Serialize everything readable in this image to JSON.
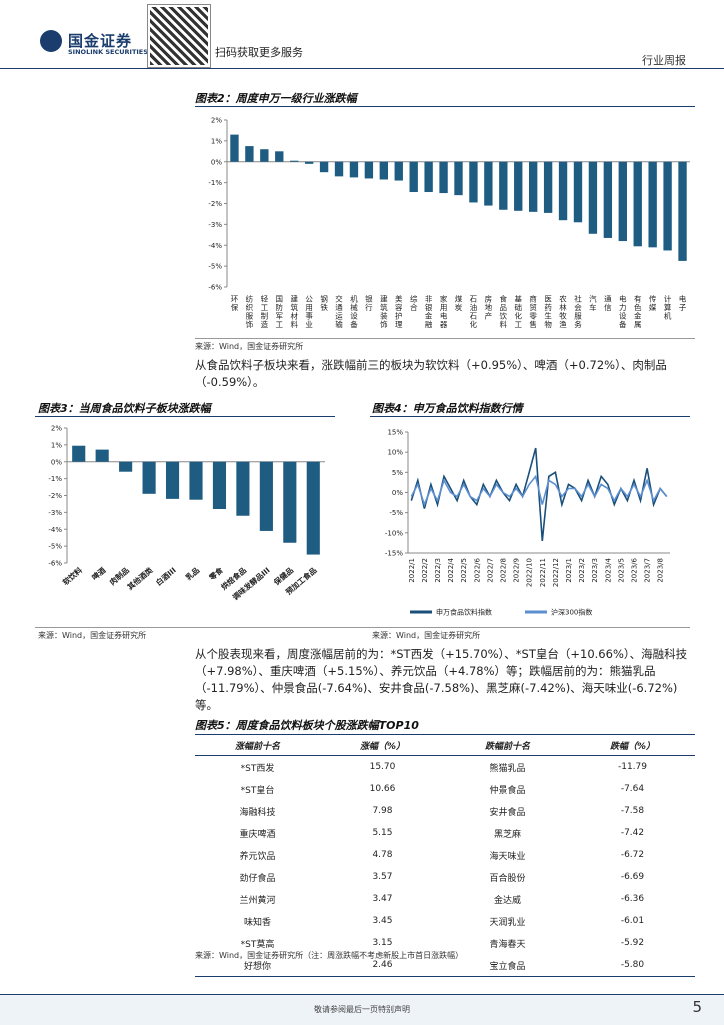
{
  "header": {
    "logo_cn": "国金证券",
    "logo_en": "SINOLINK SECURITIES",
    "qr_text": "扫码获取更多服务",
    "report_type": "行业周报"
  },
  "paragraphs": [
    "从食品饮料子板块来看，涨跌幅前三的板块为软饮料（+0.95%）、啤酒（+0.72%）、肉制品（-0.59%）。",
    "从个股表现来看，周度涨幅居前的为：*ST西发（+15.70%）、*ST皇台（+10.66%）、海融科技（+7.98%）、重庆啤酒（+5.15%）、养元饮品（+4.78%）等；跌幅居前的为：熊猫乳品（-11.79%）、仲景食品(-7.64%)、安井食品(-7.58%)、黑芝麻(-7.42%)、海天味业(-6.72%)等。"
  ],
  "sources": [
    "来源：Wind，国金证券研究所",
    "来源：Wind，国金证券研究所",
    "来源：Wind，国金证券研究所",
    "来源：Wind，国金证券研究所（注：周涨跌幅不考虑新股上市首日涨跌幅）"
  ],
  "chart_data": [
    {
      "type": "bar",
      "title": "图表2：周度申万一级行业涨跌幅",
      "color": "#1f5c82",
      "categories": [
        "环保",
        "纺织服饰",
        "轻工制造",
        "国防军工",
        "建筑材料",
        "公用事业",
        "钢铁",
        "交通运输",
        "机械设备",
        "银行",
        "建筑装饰",
        "美容护理",
        "综合",
        "非银金融",
        "家用电器",
        "煤炭",
        "石油石化",
        "房地产",
        "食品饮料",
        "基础化工",
        "商贸零售",
        "医药生物",
        "农林牧渔",
        "社会服务",
        "汽车",
        "通信",
        "电力设备",
        "有色金属",
        "传媒",
        "计算机",
        "电子"
      ],
      "values": [
        1.3,
        0.75,
        0.6,
        0.5,
        0.05,
        -0.1,
        -0.5,
        -0.7,
        -0.75,
        -0.8,
        -0.85,
        -0.9,
        -1.45,
        -1.45,
        -1.5,
        -1.6,
        -1.95,
        -2.1,
        -2.3,
        -2.35,
        -2.4,
        -2.45,
        -2.8,
        -2.9,
        -3.45,
        -3.65,
        -3.8,
        -4.05,
        -4.1,
        -4.25,
        -4.75
      ],
      "ylim": [
        -6,
        2
      ],
      "yticks": [
        {
          "value": 2,
          "label": "2%"
        },
        {
          "value": 1,
          "label": "1%"
        },
        {
          "value": 0,
          "label": "0%"
        },
        {
          "value": -1,
          "label": "-1%"
        },
        {
          "value": -2,
          "label": "-2%"
        },
        {
          "value": -3,
          "label": "-3%"
        },
        {
          "value": -4,
          "label": "-4%"
        },
        {
          "value": -5,
          "label": "-5%"
        },
        {
          "value": -6,
          "label": "-6%"
        }
      ]
    },
    {
      "type": "bar",
      "title": "图表3：当周食品饮料子板块涨跌幅",
      "color": "#1f5c82",
      "categories": [
        "软饮料",
        "啤酒",
        "肉制品",
        "其他酒类",
        "白酒III",
        "乳品",
        "零食",
        "烘焙食品",
        "调味发酵品III",
        "保健品",
        "预加工食品"
      ],
      "values": [
        0.95,
        0.72,
        -0.59,
        -1.9,
        -2.2,
        -2.25,
        -2.8,
        -3.2,
        -4.1,
        -4.8,
        -5.5
      ],
      "ylim": [
        -6,
        2
      ],
      "yticks": [
        {
          "value": 2,
          "label": "2%"
        },
        {
          "value": 1,
          "label": "1%"
        },
        {
          "value": 0,
          "label": "0%"
        },
        {
          "value": -1,
          "label": "-1%"
        },
        {
          "value": -2,
          "label": "-2%"
        },
        {
          "value": -3,
          "label": "-3%"
        },
        {
          "value": -4,
          "label": "-4%"
        },
        {
          "value": -5,
          "label": "-5%"
        },
        {
          "value": -6,
          "label": "-6%"
        }
      ]
    },
    {
      "type": "line",
      "title": "图表4：申万食品饮料指数行情",
      "categories": [
        "2022/1",
        null,
        "2022/2",
        null,
        "2022/3",
        null,
        "2022/4",
        null,
        "2022/5",
        null,
        "2022/6",
        null,
        "2022/7",
        null,
        "2022/8",
        null,
        "2022/9",
        null,
        "2022/10",
        null,
        "2022/11",
        null,
        "2022/12",
        null,
        "2023/1",
        null,
        "2023/2",
        null,
        "2023/3",
        null,
        "2023/4",
        null,
        "2023/5",
        null,
        "2023/6",
        null,
        "2023/7",
        null,
        "2023/8",
        null
      ],
      "series": [
        {
          "name": "申万食品饮料指数",
          "color": "#1a4f7a",
          "values": [
            -2,
            3,
            -4,
            2,
            -3,
            4,
            1,
            -2,
            3,
            -1,
            -3,
            2,
            -1,
            3,
            0,
            -2,
            2,
            -1,
            5,
            11,
            -12,
            4,
            5,
            -3,
            2,
            1,
            -2,
            3,
            -1,
            4,
            2,
            -3,
            1,
            -2,
            3,
            -2,
            6,
            -3,
            1,
            -1
          ]
        },
        {
          "name": "沪深300指数",
          "color": "#5b8fd0",
          "values": [
            -1,
            2,
            -3,
            1,
            -2,
            3,
            0,
            -1,
            2,
            -1,
            -2,
            1,
            -1,
            2,
            0,
            -1,
            1,
            -1,
            2,
            4,
            -3,
            3,
            2,
            -1,
            1,
            1,
            -1,
            2,
            -1,
            2,
            1,
            -2,
            1,
            -1,
            2,
            -1,
            3,
            -2,
            1,
            -1
          ]
        }
      ],
      "ylim": [
        -15,
        15
      ],
      "yticks": [
        {
          "value": 15,
          "label": "15%"
        },
        {
          "value": 10,
          "label": "10%"
        },
        {
          "value": 5,
          "label": "5%"
        },
        {
          "value": 0,
          "label": "0%"
        },
        {
          "value": -5,
          "label": "-5%"
        },
        {
          "value": -10,
          "label": "-10%"
        },
        {
          "value": -15,
          "label": "-15%"
        }
      ],
      "legend": "bottom"
    }
  ],
  "table": {
    "title": "图表5：周度食品饮料板块个股涨跌幅TOP10",
    "header": [
      "涨幅前十名",
      "涨幅（%）",
      "跌幅前十名",
      "跌幅（%）"
    ],
    "rows": [
      [
        "*ST西发",
        "15.70",
        "熊猫乳品",
        "-11.79"
      ],
      [
        "*ST皇台",
        "10.66",
        "仲景食品",
        "-7.64"
      ],
      [
        "海融科技",
        "7.98",
        "安井食品",
        "-7.58"
      ],
      [
        "重庆啤酒",
        "5.15",
        "黑芝麻",
        "-7.42"
      ],
      [
        "养元饮品",
        "4.78",
        "海天味业",
        "-6.72"
      ],
      [
        "劲仔食品",
        "3.57",
        "百合股份",
        "-6.69"
      ],
      [
        "兰州黄河",
        "3.47",
        "金达威",
        "-6.36"
      ],
      [
        "味知香",
        "3.45",
        "天润乳业",
        "-6.01"
      ],
      [
        "*ST莫高",
        "3.15",
        "青海春天",
        "-5.92"
      ],
      [
        "好想你",
        "2.46",
        "宝立食品",
        "-5.80"
      ]
    ]
  },
  "footer": {
    "disclaimer": "敬请参阅最后一页特别声明",
    "page": "5"
  }
}
